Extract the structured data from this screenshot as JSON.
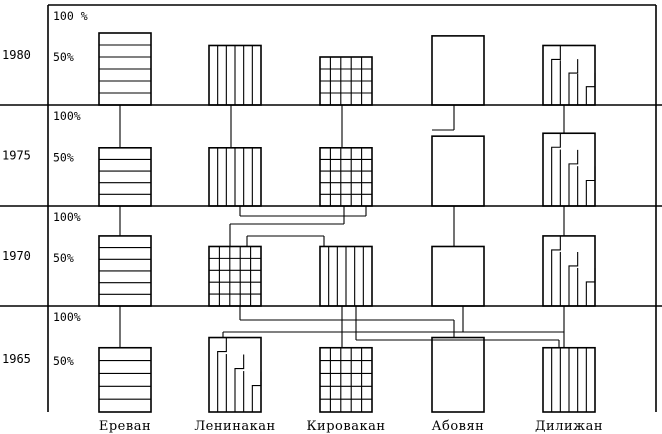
{
  "chart_data": {
    "type": "bar",
    "categories": [
      "Ереван",
      "Ленинакан",
      "Кировакан",
      "Абовян",
      "Дилижан"
    ],
    "rows": [
      "1980",
      "1975",
      "1970",
      "1965"
    ],
    "top_label": "100 %",
    "top_labels": [
      "100 %",
      "100%",
      "100%",
      "100%"
    ],
    "mid_label": "50%",
    "ylim": [
      0,
      100
    ],
    "values": {
      "1980": [
        75,
        62,
        50,
        72,
        62
      ],
      "1975": [
        60,
        60,
        60,
        72,
        75
      ],
      "1970": [
        73,
        62,
        62,
        62,
        73
      ],
      "1965": [
        63,
        73,
        63,
        73,
        63
      ]
    },
    "patterns": {
      "1980": [
        "horizontal",
        "vertical",
        "grid",
        "plain",
        "stepped"
      ],
      "1975": [
        "horizontal",
        "vertical",
        "grid",
        "plain",
        "stepped"
      ],
      "1970": [
        "horizontal",
        "grid",
        "vertical",
        "plain",
        "stepped"
      ],
      "1965": [
        "horizontal",
        "stepped",
        "grid",
        "plain",
        "vertical"
      ]
    }
  }
}
